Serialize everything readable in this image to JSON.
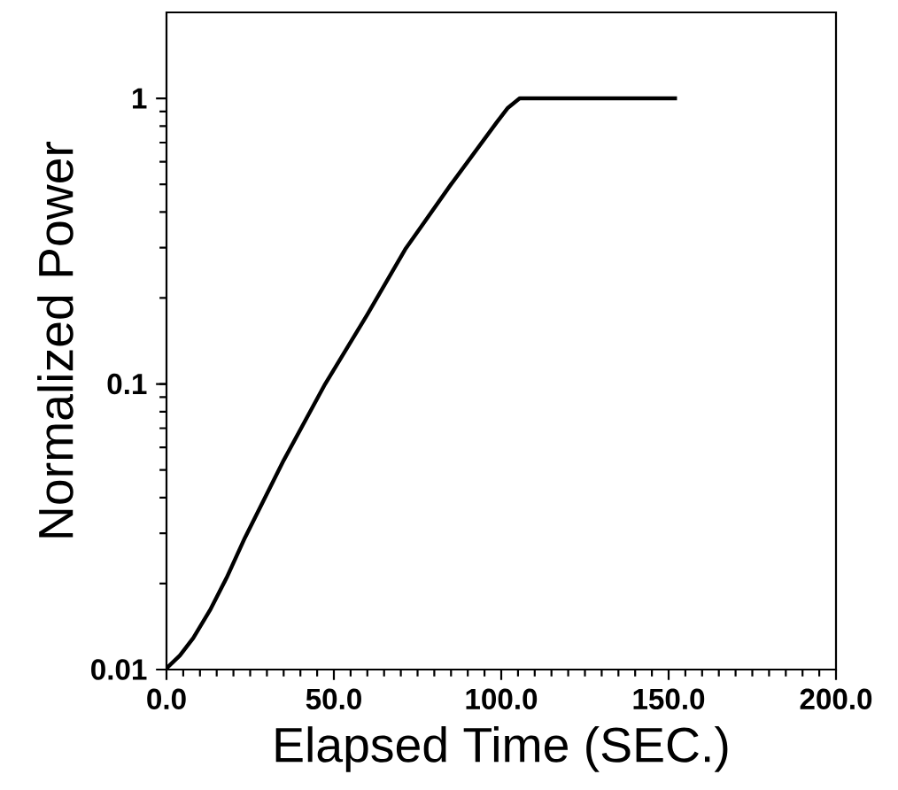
{
  "chart_data": {
    "type": "line",
    "xlabel": "Elapsed Time (SEC.)",
    "ylabel": "Normalized Power",
    "log": "y",
    "grid": false,
    "marker": "none",
    "line_style": "solid",
    "xlim": [
      0,
      200
    ],
    "xticks": [
      {
        "value": 0,
        "label": "0.0"
      },
      {
        "value": 50,
        "label": "50.0"
      },
      {
        "value": 100,
        "label": "100.0"
      },
      {
        "value": 150,
        "label": "150.0"
      },
      {
        "value": 200,
        "label": "200.0"
      }
    ],
    "ylim": [
      0.01,
      2
    ],
    "yticks": [
      0.01,
      0.1,
      1
    ],
    "series": [
      {
        "color": "#000000",
        "x": [
          0,
          4,
          8,
          13.2,
          18,
          23.4,
          35,
          47.4,
          60,
          71.3,
          85,
          98.6,
          102,
          105.5,
          110,
          152.5
        ],
        "values": [
          0.0101,
          0.0112,
          0.0129,
          0.0163,
          0.021,
          0.0289,
          0.054,
          0.1,
          0.175,
          0.296,
          0.5,
          0.823,
          0.927,
          1.0,
          1.0,
          1.0
        ]
      }
    ]
  }
}
